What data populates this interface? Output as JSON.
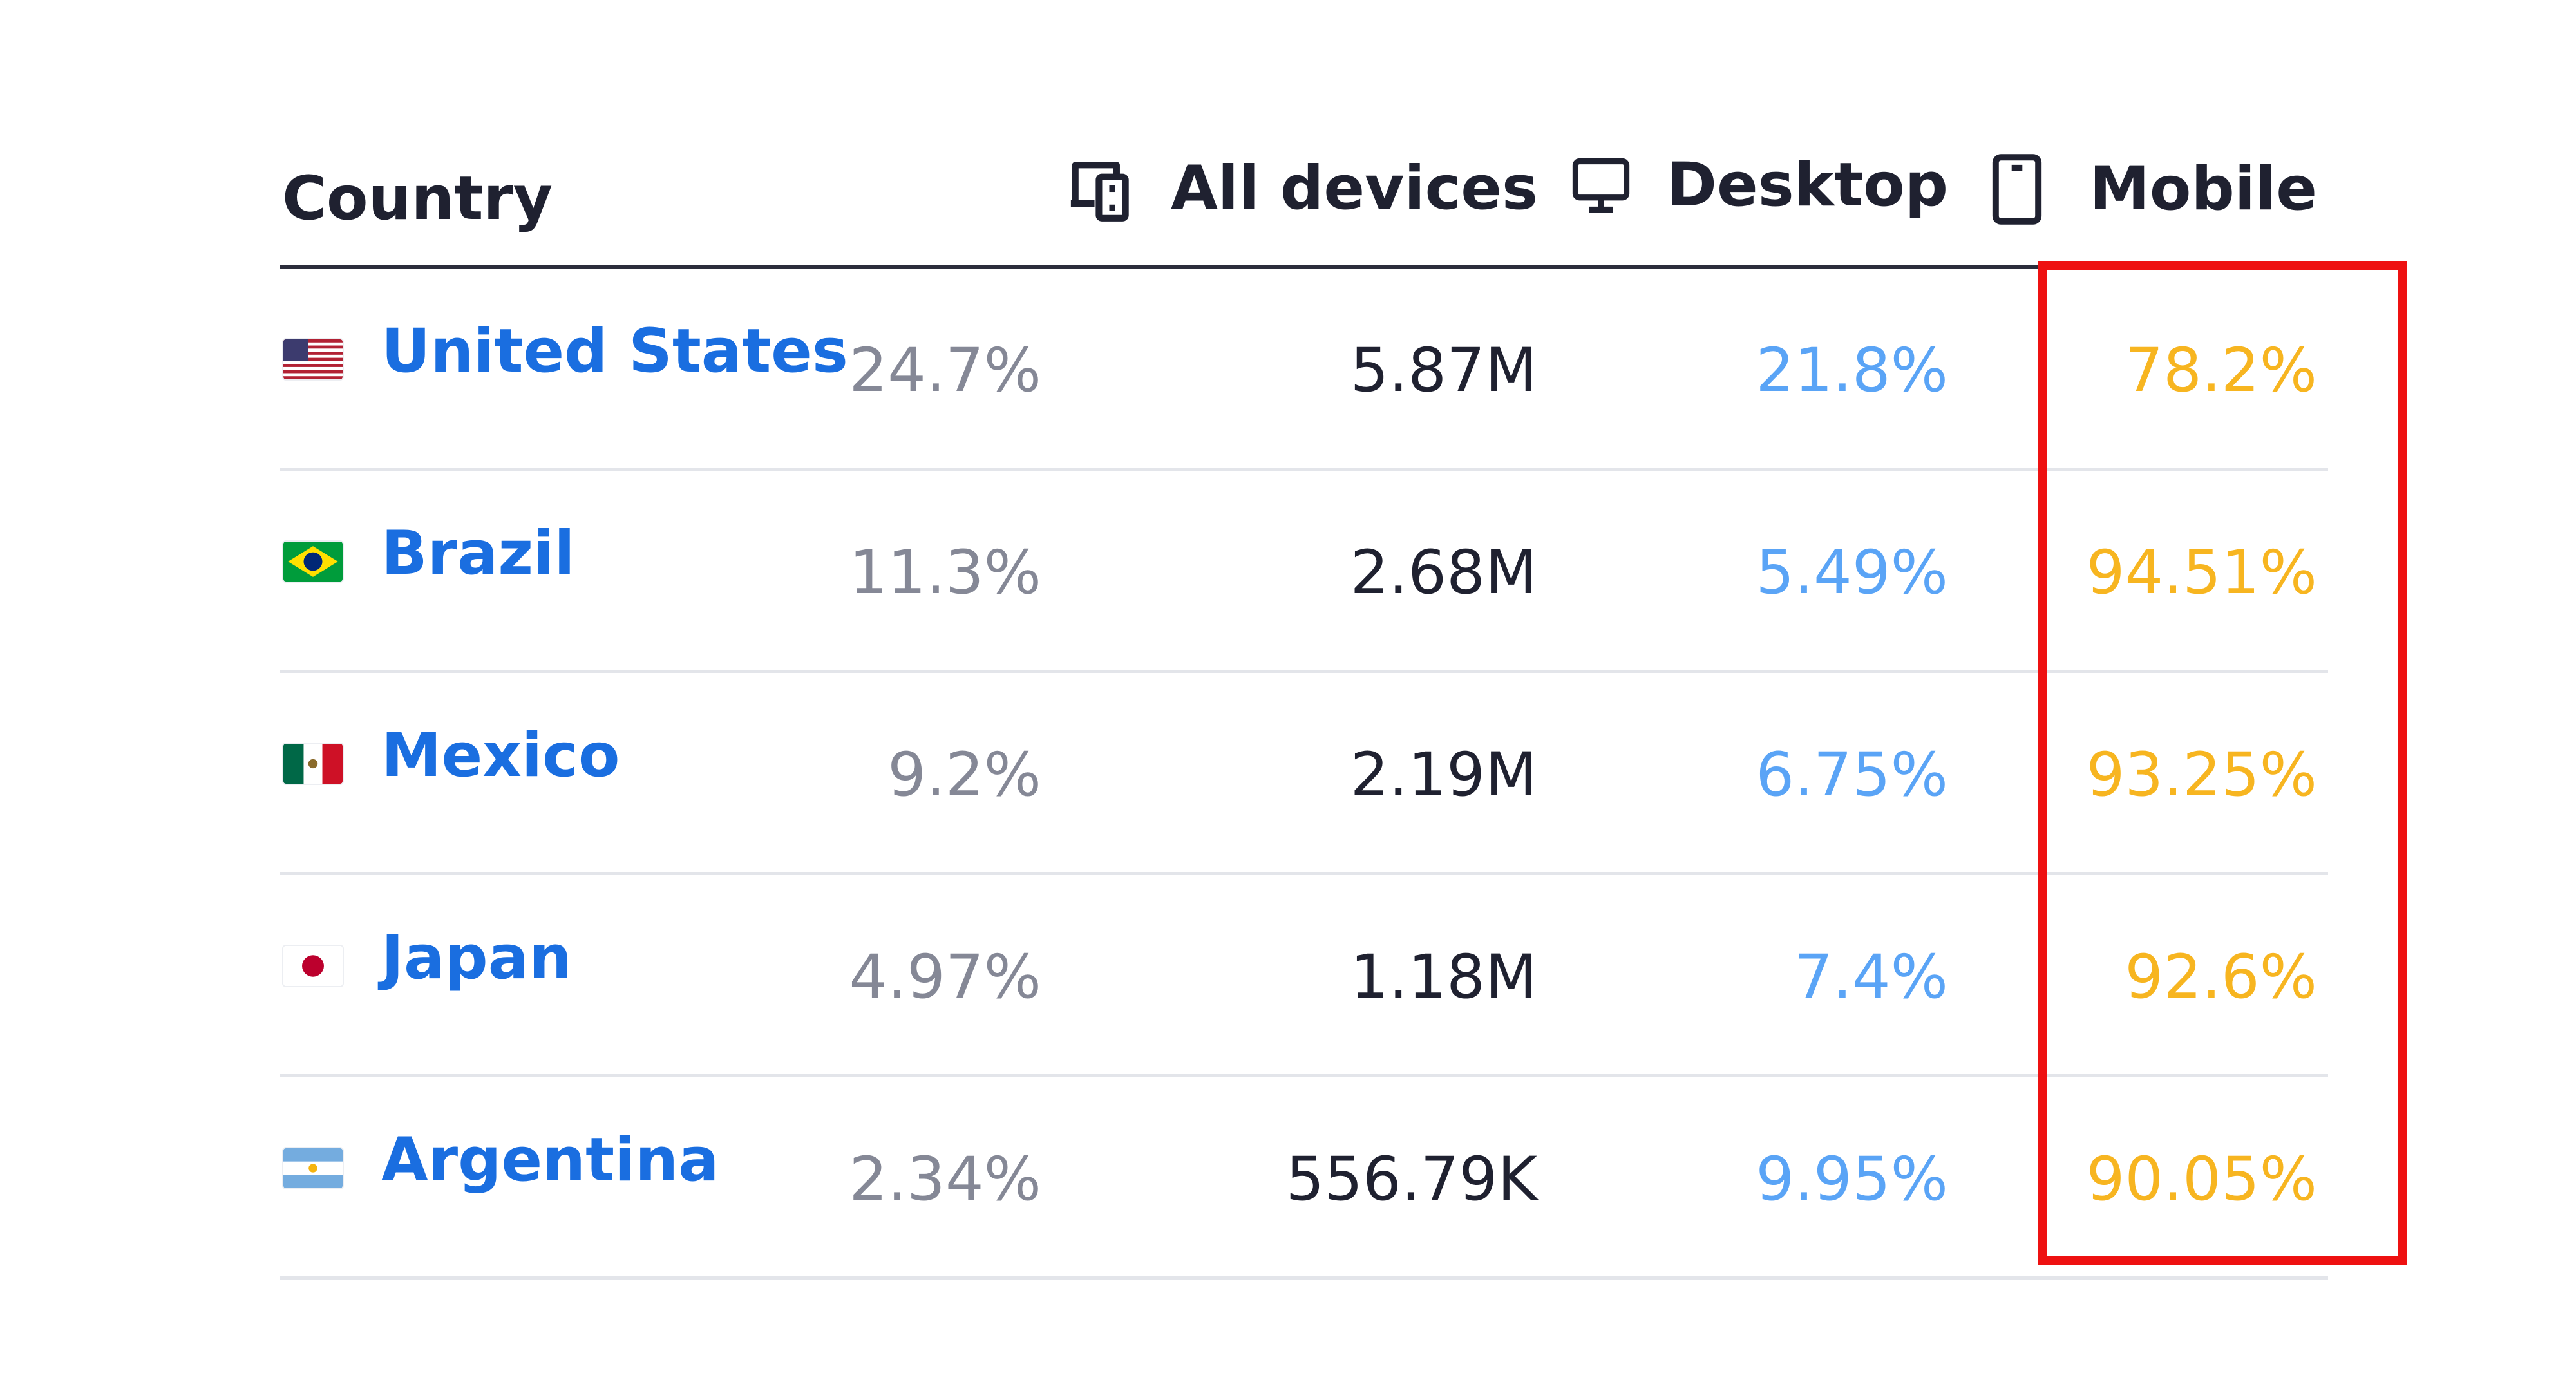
{
  "header": {
    "country": "Country",
    "all_devices": "All devices",
    "desktop": "Desktop",
    "mobile": "Mobile",
    "icons": {
      "all_devices": "devices-icon",
      "desktop": "monitor-icon",
      "mobile": "smartphone-icon"
    }
  },
  "rows": [
    {
      "country": "United States",
      "flag": "us-flag-icon",
      "share": "24.7%",
      "visits": "5.87M",
      "desktop": "21.8%",
      "mobile": "78.2%"
    },
    {
      "country": "Brazil",
      "flag": "brazil-flag-icon",
      "share": "11.3%",
      "visits": "2.68M",
      "desktop": "5.49%",
      "mobile": "94.51%"
    },
    {
      "country": "Mexico",
      "flag": "mexico-flag-icon",
      "share": "9.2%",
      "visits": "2.19M",
      "desktop": "6.75%",
      "mobile": "93.25%"
    },
    {
      "country": "Japan",
      "flag": "japan-flag-icon",
      "share": "4.97%",
      "visits": "1.18M",
      "desktop": "7.4%",
      "mobile": "92.6%"
    },
    {
      "country": "Argentina",
      "flag": "argentina-flag-icon",
      "share": "2.34%",
      "visits": "556.79K",
      "desktop": "9.95%",
      "mobile": "90.05%"
    }
  ],
  "colors": {
    "country_link": "#1a6ee0",
    "share": "#858896",
    "visits": "#1f2130",
    "desktop": "#5aa4f6",
    "mobile": "#f7b520",
    "highlight": "#ee1111"
  }
}
